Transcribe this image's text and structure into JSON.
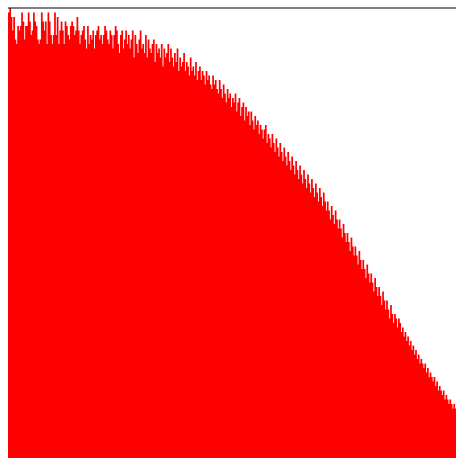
{
  "chart_data": {
    "type": "bar",
    "title": "",
    "xlabel": "",
    "ylabel": "",
    "ylim": [
      0,
      100
    ],
    "grid": false,
    "legend": "none",
    "bar_color": "#ff0000",
    "series": [
      {
        "name": "",
        "values": [
          99,
          100,
          98,
          95,
          98,
          93,
          92,
          96,
          95,
          96,
          99,
          97,
          93,
          96,
          96,
          99,
          97,
          94,
          95,
          99,
          97,
          96,
          93,
          92,
          93,
          99,
          97,
          95,
          97,
          92,
          99,
          97,
          94,
          92,
          94,
          99,
          94,
          98,
          92,
          95,
          97,
          95,
          92,
          97,
          96,
          94,
          93,
          96,
          97,
          96,
          94,
          95,
          98,
          95,
          92,
          94,
          95,
          96,
          93,
          91,
          96,
          92,
          94,
          93,
          95,
          91,
          94,
          95,
          96,
          93,
          94,
          92,
          94,
          96,
          95,
          93,
          92,
          95,
          94,
          91,
          94,
          96,
          95,
          92,
          90,
          94,
          95,
          91,
          93,
          95,
          92,
          94,
          91,
          93,
          95,
          89,
          94,
          92,
          90,
          93,
          95,
          91,
          92,
          90,
          94,
          89,
          93,
          91,
          90,
          92,
          93,
          88,
          92,
          90,
          91,
          89,
          92,
          87,
          91,
          89,
          90,
          92,
          88,
          91,
          89,
          87,
          90,
          88,
          91,
          86,
          89,
          87,
          88,
          90,
          86,
          88,
          87,
          85,
          89,
          86,
          87,
          85,
          88,
          84,
          86,
          87,
          84,
          86,
          85,
          83,
          86,
          84,
          85,
          83,
          82,
          85,
          83,
          84,
          82,
          81,
          84,
          82,
          80,
          83,
          81,
          79,
          82,
          80,
          81,
          78,
          80,
          79,
          81,
          77,
          79,
          80,
          76,
          78,
          79,
          75,
          78,
          76,
          77,
          74,
          77,
          75,
          73,
          76,
          74,
          75,
          72,
          74,
          73,
          71,
          73,
          74,
          70,
          72,
          71,
          69,
          72,
          70,
          68,
          71,
          69,
          67,
          70,
          68,
          66,
          69,
          67,
          65,
          68,
          66,
          64,
          67,
          65,
          63,
          66,
          64,
          62,
          65,
          63,
          61,
          64,
          62,
          60,
          63,
          61,
          59,
          62,
          60,
          58,
          61,
          59,
          57,
          60,
          58,
          56,
          59,
          57,
          55,
          57,
          55,
          53,
          56,
          54,
          52,
          55,
          53,
          51,
          53,
          51,
          49,
          52,
          50,
          48,
          50,
          48,
          46,
          49,
          47,
          45,
          47,
          45,
          43,
          46,
          44,
          42,
          44,
          42,
          40,
          43,
          41,
          39,
          41,
          39,
          37,
          40,
          38,
          36,
          38,
          36,
          34,
          37,
          35,
          33,
          35,
          33,
          31,
          34,
          32,
          30,
          32,
          31,
          29,
          31,
          30,
          28,
          29,
          27,
          28,
          26,
          27,
          25,
          26,
          24,
          25,
          23,
          24,
          22,
          23,
          21,
          22,
          21,
          20,
          21,
          19,
          20,
          18,
          19,
          18,
          17,
          18,
          16,
          17,
          15,
          16,
          15,
          14,
          15,
          13,
          14,
          13,
          12,
          13,
          12,
          11,
          12,
          11
        ]
      }
    ]
  }
}
